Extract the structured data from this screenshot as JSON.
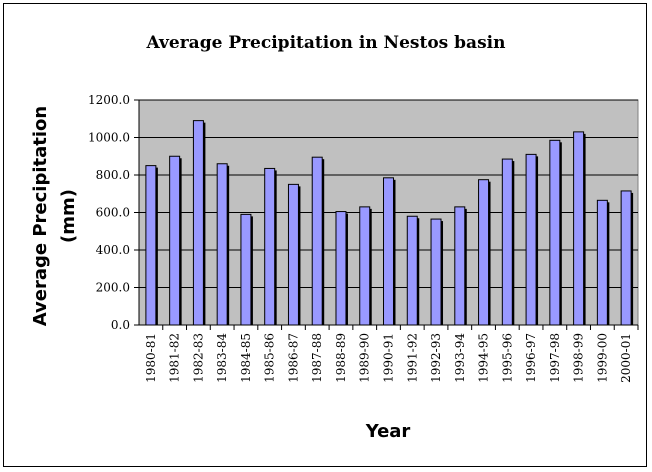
{
  "chart_data": {
    "type": "bar",
    "title": "Average Precipitation in Nestos basin",
    "xlabel": "Year",
    "ylabel_line1": "Average Precipitation",
    "ylabel_line2": "(mm)",
    "ylim": [
      0,
      1200
    ],
    "yticks": [
      "0.0",
      "200.0",
      "400.0",
      "600.0",
      "800.0",
      "1000.0",
      "1200.0"
    ],
    "categories": [
      "1980-81",
      "1981-82",
      "1982-83",
      "1983-84",
      "1984-85",
      "1985-86",
      "1986-87",
      "1987-88",
      "1988-89",
      "1989-90",
      "1990-91",
      "1991-92",
      "1992-93",
      "1993-94",
      "1994-95",
      "1995-96",
      "1996-97",
      "1997-98",
      "1998-99",
      "1999-00",
      "2000-01"
    ],
    "values": [
      850,
      900,
      1090,
      860,
      590,
      835,
      750,
      895,
      605,
      630,
      785,
      580,
      565,
      630,
      775,
      885,
      910,
      985,
      1030,
      665,
      715
    ],
    "grid": true,
    "legend": "none",
    "colors": {
      "bar": "#9999ff",
      "plot_bg": "#c0c0c0",
      "grid": "#000000"
    }
  }
}
